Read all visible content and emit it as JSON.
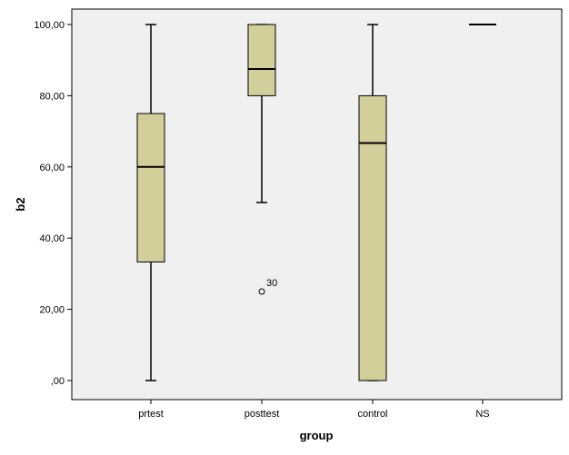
{
  "chart_data": {
    "type": "boxplot",
    "xlabel": "group",
    "ylabel": "b2",
    "ylim": [
      0,
      100
    ],
    "yticks": [
      0,
      20,
      40,
      60,
      80,
      100
    ],
    "ytick_labels": [
      ",00",
      "20,00",
      "40,00",
      "60,00",
      "80,00",
      "100,00"
    ],
    "grid": false,
    "colors": {
      "plot_background": "#f0f0f0",
      "box_fill": "#d3cf9b",
      "line": "#000000"
    },
    "categories": [
      "prtest",
      "posttest",
      "control",
      "NS"
    ],
    "boxes": [
      {
        "category": "prtest",
        "min": 0,
        "q1": 33.3,
        "median": 60,
        "q3": 75,
        "max": 100,
        "outliers": []
      },
      {
        "category": "posttest",
        "min": 50,
        "q1": 80,
        "median": 87.5,
        "q3": 100,
        "max": 100,
        "outliers": [
          {
            "value": 25,
            "label": "30"
          }
        ]
      },
      {
        "category": "control",
        "min": 0,
        "q1": 0,
        "median": 66.7,
        "q3": 80,
        "max": 100,
        "outliers": []
      },
      {
        "category": "NS",
        "min": 100,
        "q1": 100,
        "median": 100,
        "q3": 100,
        "max": 100,
        "outliers": []
      }
    ]
  }
}
